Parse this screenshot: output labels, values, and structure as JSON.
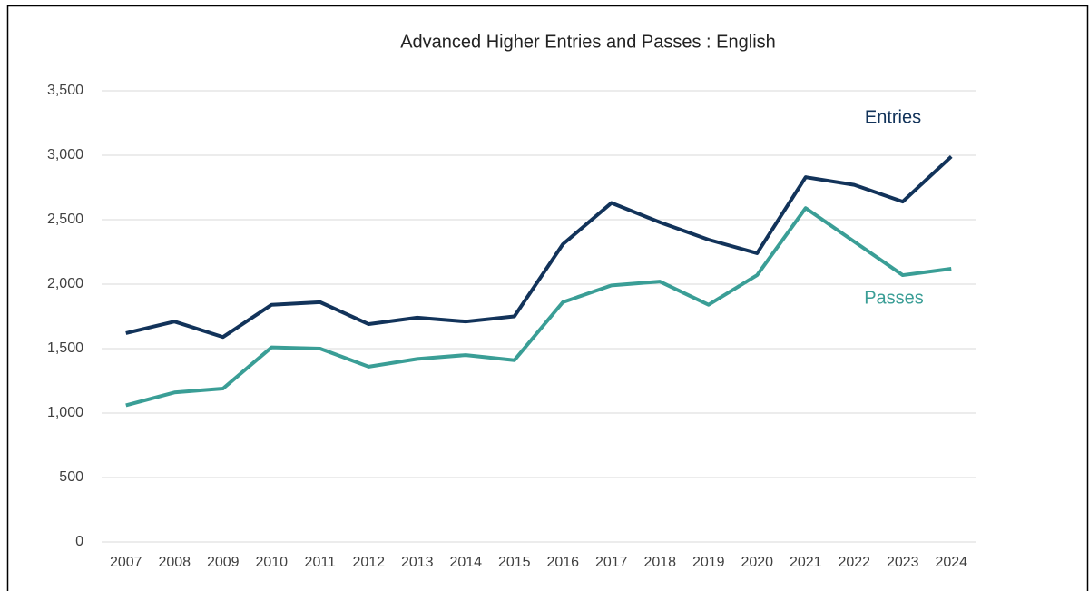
{
  "chart_data": {
    "type": "line",
    "title": "Advanced Higher Entries and Passes : English",
    "categories": [
      "2007",
      "2008",
      "2009",
      "2010",
      "2011",
      "2012",
      "2013",
      "2014",
      "2015",
      "2016",
      "2017",
      "2018",
      "2019",
      "2020",
      "2021",
      "2022",
      "2023",
      "2024"
    ],
    "series": [
      {
        "name": "Entries",
        "color": "#12335a",
        "values": [
          1620,
          1710,
          1590,
          1840,
          1860,
          1690,
          1740,
          1710,
          1750,
          2310,
          2630,
          2480,
          2345,
          2240,
          2830,
          2770,
          2640,
          2990
        ]
      },
      {
        "name": "Passes",
        "color": "#3a9e96",
        "values": [
          1060,
          1160,
          1190,
          1510,
          1500,
          1360,
          1420,
          1450,
          1410,
          1860,
          1990,
          2020,
          1840,
          2070,
          2590,
          2330,
          2070,
          2120
        ]
      }
    ],
    "ylim": [
      0,
      3500
    ],
    "yticks": [
      0,
      500,
      {
        "value": 1000,
        "label": "1,000"
      },
      {
        "value": 1500,
        "label": "1,500"
      },
      {
        "value": 2000,
        "label": "2,000"
      },
      {
        "value": 2500,
        "label": "2,500"
      },
      {
        "value": 3000,
        "label": "3,000"
      },
      {
        "value": 3500,
        "label": "3,500"
      }
    ],
    "grid": true
  }
}
